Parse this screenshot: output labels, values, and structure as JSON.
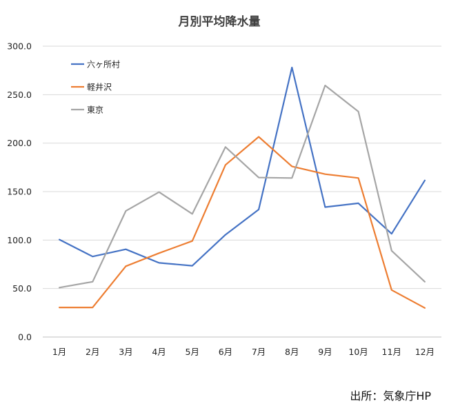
{
  "chart_data": {
    "type": "line",
    "title": "月別平均降水量",
    "categories": [
      "1月",
      "2月",
      "3月",
      "4月",
      "5月",
      "6月",
      "7月",
      "8月",
      "9月",
      "10月",
      "11月",
      "12月"
    ],
    "series": [
      {
        "name": "六ヶ所村",
        "color": "#4472C4",
        "values": [
          100.5,
          83.0,
          90.5,
          76.5,
          73.5,
          105.5,
          131.5,
          278.0,
          134.0,
          138.0,
          106.5,
          161.5
        ]
      },
      {
        "name": "軽井沢",
        "color": "#ED7D31",
        "values": [
          30.5,
          30.5,
          73.0,
          86.5,
          99.0,
          177.5,
          206.5,
          176.0,
          168.0,
          164.0,
          48.5,
          30.0
        ]
      },
      {
        "name": "東京",
        "color": "#A5A5A5",
        "values": [
          51.0,
          57.0,
          130.0,
          149.5,
          127.0,
          196.0,
          164.5,
          164.0,
          259.5,
          232.5,
          89.0,
          57.0
        ]
      }
    ],
    "ylim": [
      0,
      300
    ],
    "yticks": [
      "0.0",
      "50.0",
      "100.0",
      "150.0",
      "200.0",
      "250.0",
      "300.0"
    ],
    "grid": true,
    "legend_position": "top-left"
  },
  "source_note": "出所：気象庁HP"
}
